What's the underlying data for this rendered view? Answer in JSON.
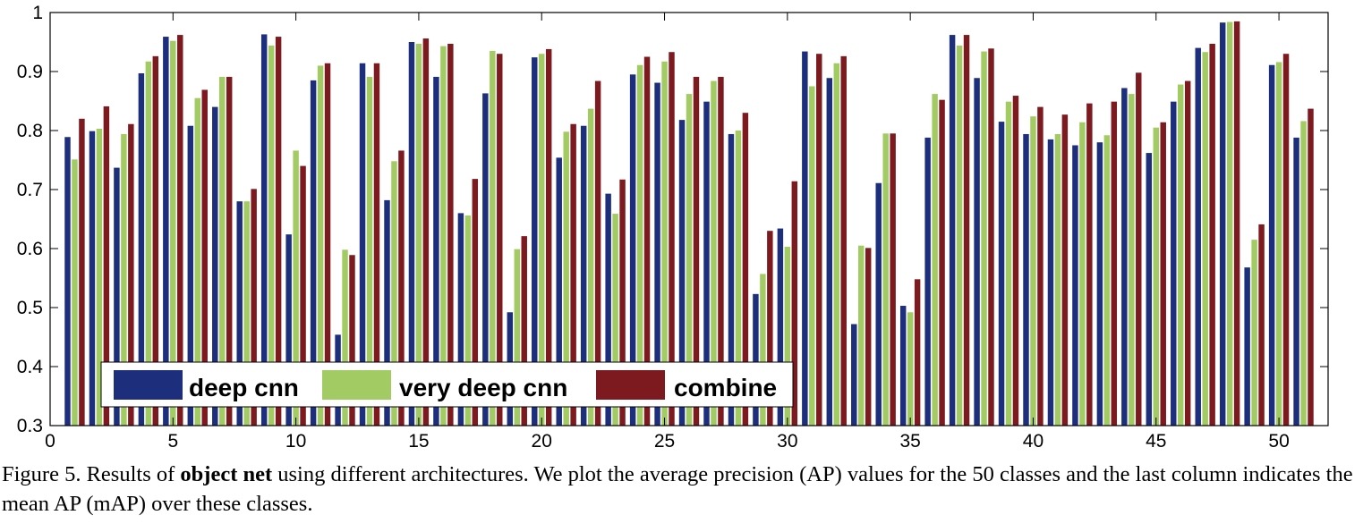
{
  "chart_data": {
    "type": "bar",
    "x": [
      1,
      2,
      3,
      4,
      5,
      6,
      7,
      8,
      9,
      10,
      11,
      12,
      13,
      14,
      15,
      16,
      17,
      18,
      19,
      20,
      21,
      22,
      23,
      24,
      25,
      26,
      27,
      28,
      29,
      30,
      31,
      32,
      33,
      34,
      35,
      36,
      37,
      38,
      39,
      40,
      41,
      42,
      43,
      44,
      45,
      46,
      47,
      48,
      49,
      50,
      51
    ],
    "xticks": [
      0,
      5,
      10,
      15,
      20,
      25,
      30,
      35,
      40,
      45,
      50
    ],
    "xlim": [
      0,
      52
    ],
    "ylim": [
      0.3,
      1.0
    ],
    "yticks": [
      0.3,
      0.4,
      0.5,
      0.6,
      0.7,
      0.8,
      0.9,
      1.0
    ],
    "ytick_labels": [
      "0.3",
      "0.4",
      "0.5",
      "0.6",
      "0.7",
      "0.8",
      "0.9",
      "1"
    ],
    "xlabel": "",
    "ylabel": "",
    "legend_position": "bottom-left",
    "series": [
      {
        "name": "deep cnn",
        "color": "#1c2e7c",
        "values": [
          0.789,
          0.799,
          0.737,
          0.897,
          0.959,
          0.808,
          0.84,
          0.68,
          0.963,
          0.624,
          0.885,
          0.454,
          0.914,
          0.682,
          0.95,
          0.891,
          0.66,
          0.863,
          0.492,
          0.924,
          0.754,
          0.808,
          0.693,
          0.895,
          0.881,
          0.818,
          0.849,
          0.794,
          0.523,
          0.634,
          0.934,
          0.889,
          0.472,
          0.711,
          0.503,
          0.788,
          0.962,
          0.889,
          0.815,
          0.794,
          0.785,
          0.775,
          0.78,
          0.872,
          0.762,
          0.849,
          0.94,
          0.983,
          0.568,
          0.911,
          0.788
        ]
      },
      {
        "name": "very deep cnn",
        "color": "#a3cb63",
        "values": [
          0.751,
          0.803,
          0.794,
          0.917,
          0.952,
          0.855,
          0.891,
          0.68,
          0.944,
          0.766,
          0.91,
          0.598,
          0.891,
          0.748,
          0.947,
          0.943,
          0.656,
          0.935,
          0.599,
          0.93,
          0.798,
          0.837,
          0.659,
          0.911,
          0.917,
          0.862,
          0.884,
          0.8,
          0.557,
          0.603,
          0.875,
          0.914,
          0.605,
          0.795,
          0.492,
          0.862,
          0.944,
          0.934,
          0.849,
          0.824,
          0.794,
          0.814,
          0.792,
          0.862,
          0.805,
          0.878,
          0.933,
          0.984,
          0.615,
          0.916,
          0.816
        ]
      },
      {
        "name": "combine",
        "color": "#7c1a1f",
        "values": [
          0.82,
          0.841,
          0.811,
          0.926,
          0.962,
          0.869,
          0.891,
          0.701,
          0.959,
          0.74,
          0.914,
          0.589,
          0.914,
          0.766,
          0.956,
          0.947,
          0.718,
          0.93,
          0.621,
          0.938,
          0.811,
          0.884,
          0.717,
          0.925,
          0.933,
          0.891,
          0.891,
          0.83,
          0.63,
          0.714,
          0.93,
          0.926,
          0.601,
          0.795,
          0.548,
          0.852,
          0.962,
          0.939,
          0.859,
          0.84,
          0.827,
          0.846,
          0.849,
          0.898,
          0.814,
          0.884,
          0.947,
          0.985,
          0.641,
          0.93,
          0.837
        ]
      }
    ]
  },
  "caption": {
    "label": "Figure 5. Results of ",
    "bold": "object net",
    "rest": " using different architectures.  We plot the average precision (AP) values for the 50 classes and the last column indicates the mean AP (mAP) over these classes."
  }
}
